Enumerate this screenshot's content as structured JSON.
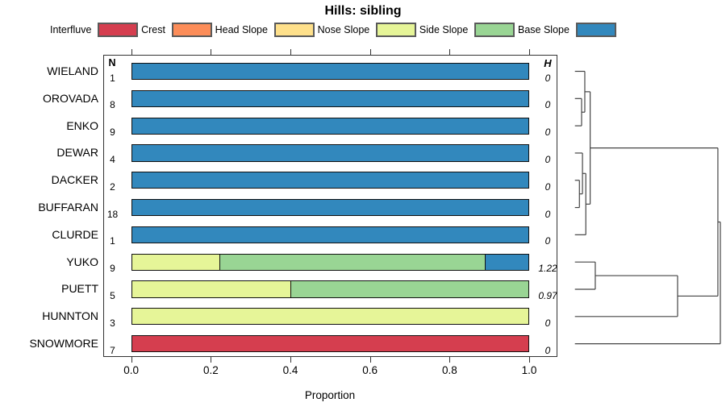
{
  "title": "Hills: sibling",
  "columns": {
    "n_header": "N",
    "h_header": "H"
  },
  "axis": {
    "xlabel": "Proportion",
    "ticks": [
      "0.0",
      "0.2",
      "0.4",
      "0.6",
      "0.8",
      "1.0"
    ]
  },
  "legend": [
    {
      "label": "Interfluve",
      "color": "#D53E4F"
    },
    {
      "label": "Crest",
      "color": "#FC8D59"
    },
    {
      "label": "Head Slope",
      "color": "#FEE08B"
    },
    {
      "label": "Nose Slope",
      "color": "#E6F598"
    },
    {
      "label": "Side Slope",
      "color": "#99D594"
    },
    {
      "label": "Base Slope",
      "color": "#3288BD"
    }
  ],
  "chart_data": {
    "type": "bar",
    "orientation": "horizontal",
    "stacked": true,
    "title": "Hills: sibling",
    "xlabel": "Proportion",
    "xlim": [
      0,
      1
    ],
    "xticks": [
      0,
      0.2,
      0.4,
      0.6,
      0.8,
      1.0
    ],
    "categories": [
      "Interfluve",
      "Crest",
      "Head Slope",
      "Nose Slope",
      "Side Slope",
      "Base Slope"
    ],
    "colors": {
      "Interfluve": "#D53E4F",
      "Crest": "#FC8D59",
      "Head Slope": "#FEE08B",
      "Nose Slope": "#E6F598",
      "Side Slope": "#99D594",
      "Base Slope": "#3288BD"
    },
    "rows": [
      {
        "label": "WIELAND",
        "n": "1",
        "h": "0",
        "segments": [
          {
            "category": "Base Slope",
            "value": 1.0
          }
        ]
      },
      {
        "label": "OROVADA",
        "n": "8",
        "h": "0",
        "segments": [
          {
            "category": "Base Slope",
            "value": 1.0
          }
        ]
      },
      {
        "label": "ENKO",
        "n": "9",
        "h": "0",
        "segments": [
          {
            "category": "Base Slope",
            "value": 1.0
          }
        ]
      },
      {
        "label": "DEWAR",
        "n": "4",
        "h": "0",
        "segments": [
          {
            "category": "Base Slope",
            "value": 1.0
          }
        ]
      },
      {
        "label": "DACKER",
        "n": "2",
        "h": "0",
        "segments": [
          {
            "category": "Base Slope",
            "value": 1.0
          }
        ]
      },
      {
        "label": "BUFFARAN",
        "n": "18",
        "h": "0",
        "segments": [
          {
            "category": "Base Slope",
            "value": 1.0
          }
        ]
      },
      {
        "label": "CLURDE",
        "n": "1",
        "h": "0",
        "segments": [
          {
            "category": "Base Slope",
            "value": 1.0
          }
        ]
      },
      {
        "label": "YUKO",
        "n": "9",
        "h": "1.22",
        "segments": [
          {
            "category": "Nose Slope",
            "value": 0.22
          },
          {
            "category": "Side Slope",
            "value": 0.67
          },
          {
            "category": "Base Slope",
            "value": 0.11
          }
        ]
      },
      {
        "label": "PUETT",
        "n": "5",
        "h": "0.97",
        "segments": [
          {
            "category": "Nose Slope",
            "value": 0.4
          },
          {
            "category": "Side Slope",
            "value": 0.6
          }
        ]
      },
      {
        "label": "HUNNTON",
        "n": "3",
        "h": "0",
        "segments": [
          {
            "category": "Nose Slope",
            "value": 1.0
          }
        ]
      },
      {
        "label": "SNOWMORE",
        "n": "7",
        "h": "0",
        "segments": [
          {
            "category": "Interfluve",
            "value": 1.0
          }
        ]
      }
    ],
    "dendrogram": {
      "leaves": [
        "WIELAND",
        "OROVADA",
        "ENKO",
        "DEWAR",
        "DACKER",
        "BUFFARAN",
        "CLURDE",
        "YUKO",
        "PUETT",
        "HUNNTON",
        "SNOWMORE"
      ],
      "merges": [
        {
          "id": "m1",
          "a": "OROVADA",
          "b": "ENKO",
          "height": 0.046
        },
        {
          "id": "m2",
          "a": "WIELAND",
          "b": "m1",
          "height": 0.068
        },
        {
          "id": "m3",
          "a": "DACKER",
          "b": "BUFFARAN",
          "height": 0.031
        },
        {
          "id": "m4",
          "a": "DEWAR",
          "b": "m3",
          "height": 0.052
        },
        {
          "id": "m5",
          "a": "m4",
          "b": "CLURDE",
          "height": 0.075
        },
        {
          "id": "m6",
          "a": "m2",
          "b": "m5",
          "height": 0.105
        },
        {
          "id": "m7",
          "a": "YUKO",
          "b": "PUETT",
          "height": 0.14
        },
        {
          "id": "m8",
          "a": "m7",
          "b": "HUNNTON",
          "height": 0.706
        },
        {
          "id": "m9",
          "a": "m6",
          "b": "m8",
          "height": 0.983
        },
        {
          "id": "m10",
          "a": "m9",
          "b": "SNOWMORE",
          "height": 1.0
        }
      ]
    }
  }
}
